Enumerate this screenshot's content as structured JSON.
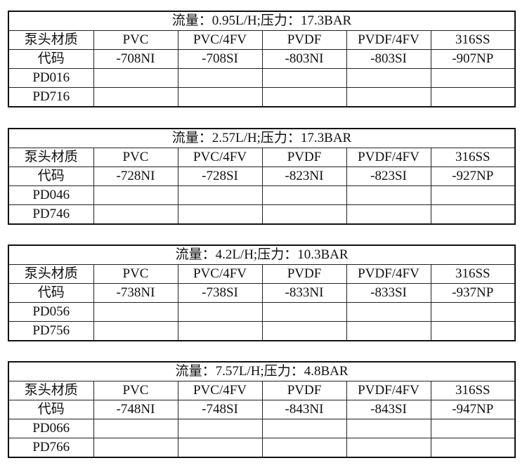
{
  "tables": [
    {
      "title": "流量：0.95L/H;压力：17.3BAR",
      "header": [
        "泵头材质",
        "PVC",
        "PVC/4FV",
        "PVDF",
        "PVDF/4FV",
        "316SS"
      ],
      "codes": [
        "代码",
        "-708NI",
        "-708SI",
        "-803NI",
        "-803SI",
        "-907NP"
      ],
      "models": [
        "PD016",
        "PD716"
      ]
    },
    {
      "title": "流量：2.57L/H;压力：17.3BAR",
      "header": [
        "泵头材质",
        "PVC",
        "PVC/4FV",
        "PVDF",
        "PVDF/4FV",
        "316SS"
      ],
      "codes": [
        "代码",
        "-728NI",
        "-728SI",
        "-823NI",
        "-823SI",
        "-927NP"
      ],
      "models": [
        "PD046",
        "PD746"
      ]
    },
    {
      "title": "流量：4.2L/H;压力：10.3BAR",
      "header": [
        "泵头材质",
        "PVC",
        "PVC/4FV",
        "PVDF",
        "PVDF/4FV",
        "316SS"
      ],
      "codes": [
        "代码",
        "-738NI",
        "-738SI",
        "-833NI",
        "-833SI",
        "-937NP"
      ],
      "models": [
        "PD056",
        "PD756"
      ]
    },
    {
      "title": "流量：7.57L/H;压力：4.8BAR",
      "header": [
        "泵头材质",
        "PVC",
        "PVC/4FV",
        "PVDF",
        "PVDF/4FV",
        "316SS"
      ],
      "codes": [
        "代码",
        "-748NI",
        "-748SI",
        "-843NI",
        "-843SI",
        "-947NP"
      ],
      "models": [
        "PD066",
        "PD766"
      ]
    }
  ]
}
